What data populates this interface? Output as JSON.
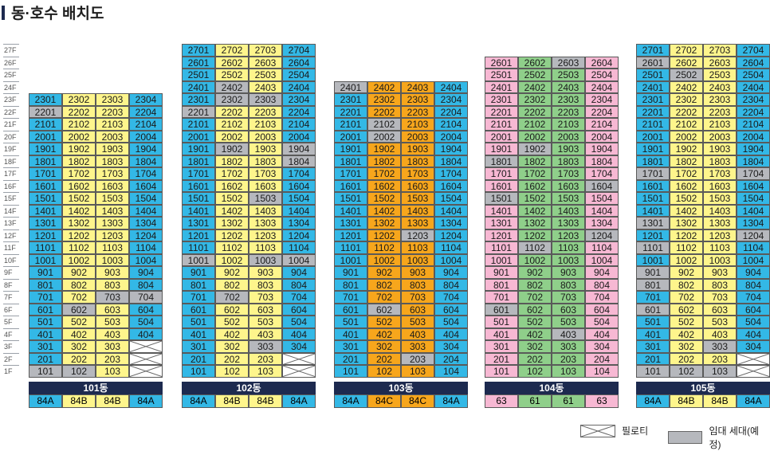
{
  "title": "동·호수 배치도",
  "colors": {
    "blue": "#33b8e6",
    "yellow": "#fef58c",
    "orange": "#f7a61c",
    "pink": "#f7b8d3",
    "green": "#8fcf8a",
    "gray": "#b6b8bd",
    "navy": "#1d2a4f"
  },
  "floors": [
    "27F",
    "26F",
    "25F",
    "24F",
    "23F",
    "22F",
    "21F",
    "20F",
    "19F",
    "18F",
    "17F",
    "16F",
    "15F",
    "14F",
    "13F",
    "12F",
    "11F",
    "10F",
    "9F",
    "8F",
    "7F",
    "6F",
    "5F",
    "4F",
    "3F",
    "2F",
    "1F"
  ],
  "buildings": [
    {
      "name": "101동",
      "max_floor": 23,
      "types": [
        "84A",
        "84B",
        "84B",
        "84A"
      ],
      "line_colors": [
        "blue",
        "yellow",
        "yellow",
        "blue"
      ],
      "type_colors": [
        "blue",
        "yellow",
        "yellow",
        "blue"
      ],
      "rental": [
        "2201",
        "602",
        "703",
        "704",
        "102",
        "101"
      ],
      "piloti": [
        "304",
        "204",
        "104"
      ]
    },
    {
      "name": "102동",
      "max_floor": 27,
      "types": [
        "84A",
        "84B",
        "84B",
        "84A"
      ],
      "line_colors": [
        "blue",
        "yellow",
        "yellow",
        "blue"
      ],
      "type_colors": [
        "blue",
        "yellow",
        "yellow",
        "blue"
      ],
      "rental": [
        "2402",
        "2302",
        "2303",
        "2201",
        "1902",
        "1904",
        "1804",
        "1503",
        "1001",
        "1003",
        "1004",
        "702",
        "303"
      ],
      "piloti": [
        "204",
        "104"
      ]
    },
    {
      "name": "103동",
      "max_floor": 24,
      "types": [
        "84A",
        "84C",
        "84C",
        "84A"
      ],
      "line_colors": [
        "blue",
        "orange",
        "orange",
        "blue"
      ],
      "type_colors": [
        "blue",
        "orange",
        "orange",
        "blue"
      ],
      "rental": [
        "2401",
        "2102",
        "2002",
        "1203",
        "602",
        "203"
      ],
      "piloti": []
    },
    {
      "name": "104동",
      "max_floor": 26,
      "types": [
        "63",
        "61",
        "61",
        "63"
      ],
      "line_colors": [
        "pink",
        "green",
        "green",
        "pink"
      ],
      "type_colors": [
        "pink",
        "green",
        "green",
        "pink"
      ],
      "rental": [
        "2603",
        "1902",
        "1801",
        "1604",
        "1501",
        "1204",
        "1102",
        "601",
        "403"
      ],
      "piloti": []
    },
    {
      "name": "105동",
      "max_floor": 27,
      "types": [
        "84A",
        "84B",
        "84B",
        "84A"
      ],
      "line_colors": [
        "blue",
        "yellow",
        "yellow",
        "blue"
      ],
      "type_colors": [
        "blue",
        "yellow",
        "yellow",
        "blue"
      ],
      "rental": [
        "2601",
        "2502",
        "1701",
        "1704",
        "1301",
        "1204",
        "1101",
        "901",
        "801",
        "601",
        "303",
        "101",
        "102",
        "103"
      ],
      "piloti": [
        "204",
        "104"
      ]
    }
  ],
  "legend": {
    "piloti": "필로티",
    "rental": "임대 세대(예정)"
  }
}
